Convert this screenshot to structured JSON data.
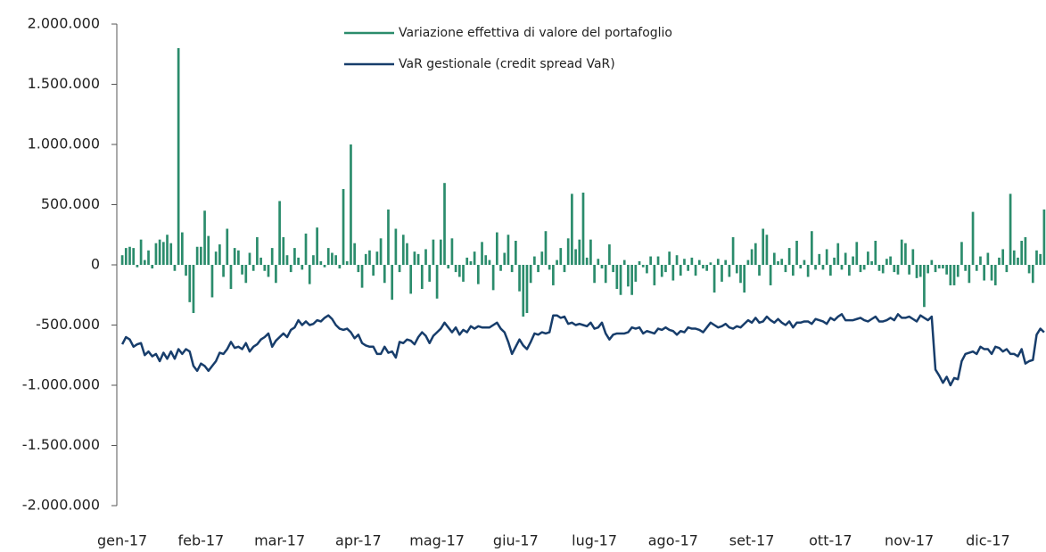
{
  "chart_data": {
    "type": "bar_line",
    "categories": [
      "gen-17",
      null,
      null,
      null,
      null,
      null,
      null,
      null,
      null,
      null,
      null,
      null,
      null,
      null,
      null,
      null,
      null,
      null,
      null,
      null,
      null,
      "feb-17",
      null,
      null,
      null,
      null,
      null,
      null,
      null,
      null,
      null,
      null,
      null,
      null,
      null,
      null,
      null,
      null,
      null,
      null,
      null,
      null,
      "mar-17",
      null,
      null,
      null,
      null,
      null,
      null,
      null,
      null,
      null,
      null,
      null,
      null,
      null,
      null,
      null,
      null,
      null,
      null,
      null,
      null,
      "apr-17",
      null,
      null,
      null,
      null,
      null,
      null,
      null,
      null,
      null,
      null,
      null,
      null,
      null,
      null,
      null,
      null,
      null,
      null,
      null,
      null,
      "mag-17",
      null,
      null,
      null,
      null,
      null,
      null,
      null,
      null,
      null,
      null,
      null,
      null,
      null,
      null,
      null,
      null,
      null,
      null,
      null,
      null,
      "giu-17",
      null,
      null,
      null,
      null,
      null,
      null,
      null,
      null,
      null,
      null,
      null,
      null,
      null,
      null,
      null,
      null,
      null,
      null,
      null,
      null,
      "lug-17",
      null,
      null,
      null,
      null,
      null,
      null,
      null,
      null,
      null,
      null,
      null,
      null,
      null,
      null,
      null,
      null,
      null,
      null,
      null,
      null,
      "ago-17",
      null,
      null,
      null,
      null,
      null,
      null,
      null,
      null,
      null,
      null,
      null,
      null,
      null,
      null,
      null,
      null,
      null,
      null,
      null,
      null,
      "set-17",
      null,
      null,
      null,
      null,
      null,
      null,
      null,
      null,
      null,
      null,
      null,
      null,
      null,
      null,
      null,
      null,
      null,
      null,
      null,
      null,
      "ott-17",
      null,
      null,
      null,
      null,
      null,
      null,
      null,
      null,
      null,
      null,
      null,
      null,
      null,
      null,
      null,
      null,
      null,
      null,
      null,
      null,
      "nov-17",
      null,
      null,
      null,
      null,
      null,
      null,
      null,
      null,
      null,
      null,
      null,
      null,
      null,
      null,
      null,
      null,
      null,
      null,
      null,
      null,
      "dic-17",
      null,
      null,
      null,
      null,
      null,
      null,
      null,
      null,
      null,
      null,
      null,
      null,
      null,
      null,
      null
    ],
    "series": [
      {
        "name": "Variazione effettiva di valore del portafoglio",
        "kind": "bar",
        "color": "#2b8c6c",
        "values": [
          80000,
          140000,
          150000,
          140000,
          -20000,
          210000,
          40000,
          120000,
          -30000,
          180000,
          210000,
          190000,
          250000,
          180000,
          -50000,
          1800000,
          270000,
          -90000,
          -310000,
          -400000,
          150000,
          150000,
          450000,
          240000,
          -270000,
          110000,
          170000,
          -100000,
          300000,
          -200000,
          140000,
          120000,
          -80000,
          -150000,
          100000,
          -50000,
          230000,
          60000,
          -50000,
          -100000,
          140000,
          -150000,
          530000,
          230000,
          80000,
          -60000,
          140000,
          60000,
          -40000,
          260000,
          -160000,
          80000,
          310000,
          30000,
          -20000,
          140000,
          100000,
          80000,
          -30000,
          630000,
          30000,
          1000000,
          180000,
          -60000,
          -190000,
          90000,
          120000,
          -90000,
          110000,
          220000,
          -150000,
          460000,
          -290000,
          300000,
          -60000,
          250000,
          180000,
          -240000,
          110000,
          90000,
          -200000,
          130000,
          -140000,
          210000,
          -280000,
          210000,
          680000,
          -30000,
          220000,
          -60000,
          -100000,
          -140000,
          60000,
          30000,
          110000,
          -160000,
          190000,
          80000,
          40000,
          -210000,
          270000,
          -50000,
          100000,
          250000,
          -60000,
          200000,
          -220000,
          -430000,
          -400000,
          -150000,
          70000,
          -60000,
          110000,
          280000,
          -40000,
          -170000,
          40000,
          140000,
          -60000,
          220000,
          590000,
          130000,
          210000,
          600000,
          60000,
          210000,
          -150000,
          50000,
          -30000,
          -150000,
          170000,
          -60000,
          -200000,
          -250000,
          40000,
          -180000,
          -250000,
          -140000,
          30000,
          -20000,
          -70000,
          70000,
          -170000,
          70000,
          -100000,
          -60000,
          110000,
          -130000,
          80000,
          -90000,
          50000,
          -50000,
          60000,
          -90000,
          40000,
          -30000,
          -50000,
          20000,
          -230000,
          50000,
          -140000,
          40000,
          -100000,
          230000,
          -70000,
          -150000,
          -230000,
          40000,
          130000,
          180000,
          -90000,
          300000,
          250000,
          -170000,
          100000,
          30000,
          50000,
          -60000,
          140000,
          -90000,
          200000,
          -30000,
          40000,
          -100000,
          280000,
          -40000,
          90000,
          -40000,
          130000,
          -90000,
          60000,
          180000,
          -40000,
          100000,
          -90000,
          70000,
          190000,
          -60000,
          -40000,
          110000,
          30000,
          200000,
          -50000,
          -70000,
          50000,
          70000,
          -60000,
          -80000,
          210000,
          180000,
          -80000,
          130000,
          -110000,
          -100000,
          -350000,
          -70000,
          40000,
          -60000,
          -30000,
          -30000,
          -80000,
          -170000,
          -170000,
          -100000,
          190000,
          -50000,
          -150000,
          440000,
          -50000,
          70000,
          -130000,
          100000,
          -130000,
          -170000,
          60000,
          130000,
          -60000,
          590000,
          120000,
          60000,
          200000,
          230000,
          -70000,
          -150000,
          120000,
          90000,
          460000
        ]
      },
      {
        "name": "VaR gestionale (credit spread VaR)",
        "kind": "line",
        "color": "#173d6b",
        "values": [
          -660000,
          -600000,
          -620000,
          -680000,
          -660000,
          -650000,
          -750000,
          -720000,
          -760000,
          -740000,
          -800000,
          -730000,
          -780000,
          -720000,
          -780000,
          -700000,
          -740000,
          -700000,
          -720000,
          -840000,
          -880000,
          -820000,
          -840000,
          -880000,
          -840000,
          -800000,
          -730000,
          -740000,
          -700000,
          -640000,
          -690000,
          -680000,
          -700000,
          -650000,
          -720000,
          -680000,
          -660000,
          -620000,
          -600000,
          -570000,
          -680000,
          -630000,
          -600000,
          -570000,
          -600000,
          -540000,
          -520000,
          -460000,
          -500000,
          -470000,
          -500000,
          -490000,
          -460000,
          -470000,
          -440000,
          -420000,
          -450000,
          -500000,
          -530000,
          -540000,
          -530000,
          -560000,
          -610000,
          -580000,
          -650000,
          -670000,
          -680000,
          -680000,
          -740000,
          -740000,
          -680000,
          -730000,
          -720000,
          -770000,
          -640000,
          -650000,
          -620000,
          -630000,
          -660000,
          -600000,
          -560000,
          -590000,
          -650000,
          -590000,
          -560000,
          -530000,
          -480000,
          -520000,
          -560000,
          -520000,
          -580000,
          -540000,
          -560000,
          -510000,
          -530000,
          -510000,
          -520000,
          -520000,
          -520000,
          -500000,
          -480000,
          -530000,
          -560000,
          -640000,
          -740000,
          -680000,
          -620000,
          -670000,
          -700000,
          -640000,
          -570000,
          -580000,
          -560000,
          -570000,
          -560000,
          -420000,
          -420000,
          -440000,
          -430000,
          -490000,
          -480000,
          -500000,
          -490000,
          -500000,
          -510000,
          -480000,
          -530000,
          -520000,
          -480000,
          -570000,
          -620000,
          -580000,
          -570000,
          -570000,
          -570000,
          -560000,
          -520000,
          -530000,
          -520000,
          -570000,
          -550000,
          -560000,
          -570000,
          -530000,
          -540000,
          -520000,
          -540000,
          -550000,
          -580000,
          -550000,
          -560000,
          -520000,
          -530000,
          -530000,
          -540000,
          -560000,
          -520000,
          -480000,
          -500000,
          -520000,
          -510000,
          -490000,
          -520000,
          -530000,
          -510000,
          -520000,
          -490000,
          -460000,
          -480000,
          -440000,
          -480000,
          -470000,
          -430000,
          -460000,
          -480000,
          -450000,
          -480000,
          -500000,
          -470000,
          -520000,
          -480000,
          -480000,
          -470000,
          -470000,
          -490000,
          -450000,
          -460000,
          -470000,
          -490000,
          -440000,
          -460000,
          -430000,
          -410000,
          -460000,
          -460000,
          -460000,
          -450000,
          -440000,
          -460000,
          -470000,
          -450000,
          -430000,
          -470000,
          -470000,
          -460000,
          -440000,
          -460000,
          -410000,
          -440000,
          -440000,
          -430000,
          -450000,
          -470000,
          -420000,
          -440000,
          -460000,
          -430000,
          -870000,
          -920000,
          -980000,
          -930000,
          -1000000,
          -940000,
          -950000,
          -800000,
          -740000,
          -730000,
          -720000,
          -740000,
          -680000,
          -700000,
          -700000,
          -740000,
          -680000,
          -690000,
          -720000,
          -700000,
          -740000,
          -740000,
          -760000,
          -700000,
          -820000,
          -800000,
          -790000,
          -580000,
          -530000,
          -560000
        ]
      }
    ],
    "ylim": [
      -2000000,
      2000000
    ],
    "yticks": [
      {
        "value": -2000000,
        "label": "-2.000.000"
      },
      {
        "value": -1500000,
        "label": "-1.500.000"
      },
      {
        "value": -1000000,
        "label": "-1.000.000"
      },
      {
        "value": -500000,
        "label": "-500.000"
      },
      0,
      {
        "value": 500000,
        "label": "500.000"
      },
      {
        "value": 1000000,
        "label": "1.000.000"
      },
      {
        "value": 1500000,
        "label": "1.500.000"
      },
      {
        "value": 2000000,
        "label": "2.000.000"
      }
    ],
    "legend": "top"
  }
}
